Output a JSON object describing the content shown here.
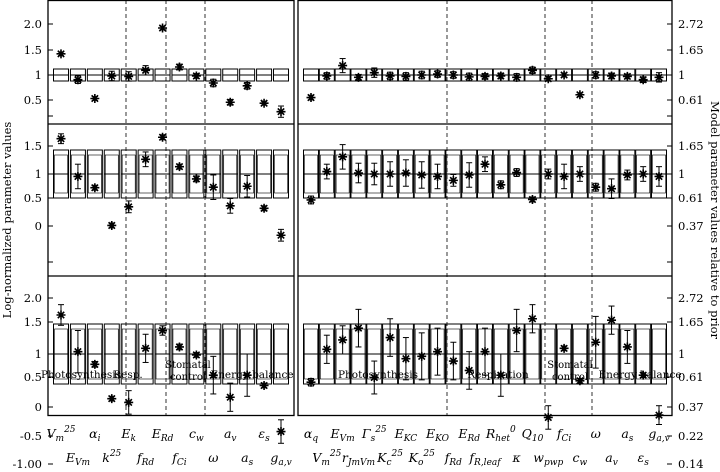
{
  "chart_data": {
    "type": "scatter",
    "ylabel_left": "Log-normalized parameter values",
    "ylabel_right": "Model parameter values relative to prior",
    "y_range": [
      -1.0,
      2.3
    ],
    "left_ticks": [
      [
        "2.0",
        "1.5",
        "1",
        "0.5",
        ""
      ],
      [
        "1.5",
        "1",
        "0.5",
        "0",
        ""
      ],
      [
        "2.0",
        "1.5",
        "1",
        "0.5",
        "0",
        "-0.5",
        "-1.00"
      ]
    ],
    "right_ticks": [
      [
        "2.72",
        "1.65",
        "1",
        "0.61",
        ""
      ],
      [
        "1.65",
        "1",
        "0.61",
        "0.37",
        ""
      ],
      [
        "2.72",
        "1.65",
        "1",
        "0.61",
        "0.37",
        "0.22",
        "0.14"
      ]
    ],
    "left_panel": {
      "x_labels_top": [
        "V_m^25",
        "α_i",
        "E_k",
        "E_Rd",
        "c_w",
        "a_v",
        "ε_s"
      ],
      "x_labels_bottom": [
        "E_Vm",
        "k^25",
        "f_Rd",
        "f_Ci",
        "ω",
        "a_s",
        "g_a,v"
      ],
      "groups": [
        {
          "label": "Photosynthesis",
          "from": 0,
          "to": 3
        },
        {
          "label": "Resp.",
          "from": 4,
          "to": 5
        },
        {
          "label": "Stomatal control",
          "from": 6,
          "to": 7
        },
        {
          "label": "Energy balance",
          "from": 8,
          "to": 13
        }
      ],
      "estimates": [
        [
          {
            "v": 1.45,
            "e": 0.04
          },
          {
            "v": 0.9,
            "e": 0.08
          },
          {
            "v": 0.5,
            "e": 0.04
          },
          {
            "v": 0.98,
            "e": 0.1
          },
          {
            "v": 0.97,
            "e": 0.1
          },
          {
            "v": 1.1,
            "e": 0.1
          },
          {
            "v": 2.0,
            "e": 0.04
          },
          {
            "v": 1.17,
            "e": 0.06
          },
          {
            "v": 0.98,
            "e": 0.05
          },
          {
            "v": 0.83,
            "e": 0.08
          },
          {
            "v": 0.42,
            "e": 0.06
          },
          {
            "v": 0.77,
            "e": 0.07
          },
          {
            "v": 0.4,
            "e": 0.04
          },
          {
            "v": 0.22,
            "e": 0.12
          }
        ],
        [
          {
            "v": 1.72,
            "e": 0.1
          },
          {
            "v": 0.95,
            "e": 0.25
          },
          {
            "v": 0.72,
            "e": 0.05
          },
          {
            "v": -0.05,
            "e": 0.05
          },
          {
            "v": 0.33,
            "e": 0.12
          },
          {
            "v": 1.3,
            "e": 0.15
          },
          {
            "v": 1.75,
            "e": 0.05
          },
          {
            "v": 1.15,
            "e": 0.05
          },
          {
            "v": 0.9,
            "e": 0.06
          },
          {
            "v": 0.73,
            "e": 0.25
          },
          {
            "v": 0.35,
            "e": 0.15
          },
          {
            "v": 0.75,
            "e": 0.22
          },
          {
            "v": 0.3,
            "e": 0.05
          },
          {
            "v": -0.25,
            "e": 0.12
          }
        ],
        [
          {
            "v": 1.83,
            "e": 0.22
          },
          {
            "v": 1.05,
            "e": 0.45
          },
          {
            "v": 0.78,
            "e": 0.06
          },
          {
            "v": 0.05,
            "e": 0.05
          },
          {
            "v": -0.03,
            "e": 0.25
          },
          {
            "v": 1.12,
            "e": 0.3
          },
          {
            "v": 1.5,
            "e": 0.1
          },
          {
            "v": 1.15,
            "e": 0.06
          },
          {
            "v": 0.98,
            "e": 0.05
          },
          {
            "v": 0.55,
            "e": 0.4
          },
          {
            "v": 0.08,
            "e": 0.3
          },
          {
            "v": 0.55,
            "e": 0.45
          },
          {
            "v": 0.33,
            "e": 0.05
          },
          {
            "v": -0.65,
            "e": 0.25
          }
        ]
      ]
    },
    "right_panel": {
      "x_labels_top": [
        "α_q",
        "E_Vm",
        "Γ_s^25",
        "E_KC",
        "E_KO",
        "E_Rd",
        "R_het^0",
        "Q_10",
        "f_Ci",
        "ω",
        "a_s",
        "g_a,v"
      ],
      "x_labels_bottom": [
        "V_m^25",
        "r_JmVm",
        "K_c^25",
        "K_o^25",
        "f_Rd",
        "f_R,leaf",
        "κ",
        "w_pwp",
        "c_w",
        "a_v",
        "ε_s"
      ],
      "groups": [
        {
          "label": "Photosynthesis",
          "from": 0,
          "to": 8
        },
        {
          "label": "Respiration",
          "from": 9,
          "to": 14
        },
        {
          "label": "Stomatal control",
          "from": 15,
          "to": 16
        },
        {
          "label": "Energy balance",
          "from": 17,
          "to": 22
        }
      ],
      "estimates": [
        [
          {
            "v": 0.52,
            "e": 0.05
          },
          {
            "v": 0.98,
            "e": 0.07
          },
          {
            "v": 1.2,
            "e": 0.15
          },
          {
            "v": 0.95,
            "e": 0.06
          },
          {
            "v": 1.05,
            "e": 0.1
          },
          {
            "v": 0.98,
            "e": 0.08
          },
          {
            "v": 0.97,
            "e": 0.08
          },
          {
            "v": 1.0,
            "e": 0.08
          },
          {
            "v": 1.02,
            "e": 0.07
          },
          {
            "v": 1.0,
            "e": 0.07
          },
          {
            "v": 0.96,
            "e": 0.08
          },
          {
            "v": 0.97,
            "e": 0.06
          },
          {
            "v": 0.98,
            "e": 0.06
          },
          {
            "v": 0.95,
            "e": 0.08
          },
          {
            "v": 1.1,
            "e": 0.07
          },
          {
            "v": 0.92,
            "e": 0.05
          },
          {
            "v": 1.0,
            "e": 0.04
          },
          {
            "v": 0.58,
            "e": 0.04
          },
          {
            "v": 1.0,
            "e": 0.07
          },
          {
            "v": 0.98,
            "e": 0.06
          },
          {
            "v": 0.97,
            "e": 0.05
          },
          {
            "v": 0.9,
            "e": 0.06
          },
          {
            "v": 0.95,
            "e": 0.1
          }
        ],
        [
          {
            "v": 0.47,
            "e": 0.08
          },
          {
            "v": 1.05,
            "e": 0.15
          },
          {
            "v": 1.35,
            "e": 0.25
          },
          {
            "v": 1.02,
            "e": 0.2
          },
          {
            "v": 1.0,
            "e": 0.22
          },
          {
            "v": 1.0,
            "e": 0.25
          },
          {
            "v": 1.02,
            "e": 0.27
          },
          {
            "v": 0.98,
            "e": 0.27
          },
          {
            "v": 0.95,
            "e": 0.25
          },
          {
            "v": 0.87,
            "e": 0.12
          },
          {
            "v": 0.98,
            "e": 0.25
          },
          {
            "v": 1.2,
            "e": 0.15
          },
          {
            "v": 0.78,
            "e": 0.08
          },
          {
            "v": 1.03,
            "e": 0.08
          },
          {
            "v": 0.48,
            "e": 0.05
          },
          {
            "v": 1.0,
            "e": 0.1
          },
          {
            "v": 0.95,
            "e": 0.25
          },
          {
            "v": 1.0,
            "e": 0.15
          },
          {
            "v": 0.73,
            "e": 0.08
          },
          {
            "v": 0.7,
            "e": 0.2
          },
          {
            "v": 0.98,
            "e": 0.1
          },
          {
            "v": 1.0,
            "e": 0.15
          },
          {
            "v": 0.95,
            "e": 0.2
          }
        ],
        [
          {
            "v": 0.4,
            "e": 0.08
          },
          {
            "v": 1.1,
            "e": 0.3
          },
          {
            "v": 1.3,
            "e": 0.3
          },
          {
            "v": 1.55,
            "e": 0.4
          },
          {
            "v": 0.5,
            "e": 0.35
          },
          {
            "v": 1.35,
            "e": 0.4
          },
          {
            "v": 0.9,
            "e": 0.45
          },
          {
            "v": 0.95,
            "e": 0.5
          },
          {
            "v": 1.05,
            "e": 0.5
          },
          {
            "v": 0.85,
            "e": 0.4
          },
          {
            "v": 0.65,
            "e": 0.4
          },
          {
            "v": 1.05,
            "e": 0.5
          },
          {
            "v": 0.55,
            "e": 0.45
          },
          {
            "v": 1.5,
            "e": 0.45
          },
          {
            "v": 1.75,
            "e": 0.3
          },
          {
            "v": -0.35,
            "e": 0.25
          },
          {
            "v": 1.12,
            "e": 0.05
          },
          {
            "v": 0.43,
            "e": 0.05
          },
          {
            "v": 1.25,
            "e": 0.55
          },
          {
            "v": 1.72,
            "e": 0.3
          },
          {
            "v": 1.15,
            "e": 0.35
          },
          {
            "v": 0.55,
            "e": 0.05
          },
          {
            "v": -0.3,
            "e": 0.2
          }
        ]
      ]
    }
  }
}
